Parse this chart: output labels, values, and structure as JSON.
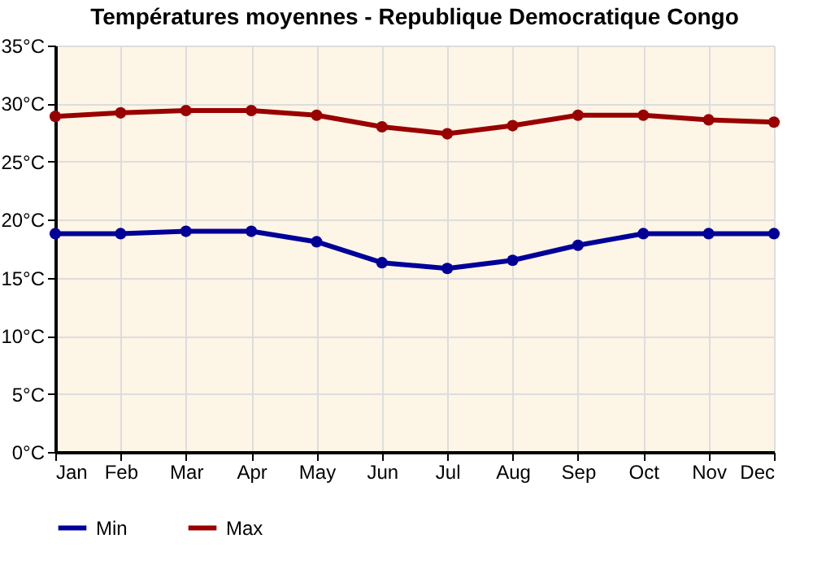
{
  "chart_data": {
    "type": "line",
    "title": "Températures moyennes - Republique Democratique Congo",
    "categories": [
      "Jan",
      "Feb",
      "Mar",
      "Apr",
      "May",
      "Jun",
      "Jul",
      "Aug",
      "Sep",
      "Oct",
      "Nov",
      "Dec"
    ],
    "series": [
      {
        "name": "Min",
        "color": "#000099",
        "values": [
          18.8,
          18.8,
          19.0,
          19.0,
          18.1,
          16.3,
          15.8,
          16.5,
          17.8,
          18.8,
          18.8,
          18.8
        ]
      },
      {
        "name": "Max",
        "color": "#990000",
        "values": [
          28.9,
          29.2,
          29.4,
          29.4,
          29.0,
          28.0,
          27.4,
          28.1,
          29.0,
          29.0,
          28.6,
          28.4
        ]
      }
    ],
    "ylim": [
      0,
      35
    ],
    "yticks": [
      {
        "value": 0,
        "label": "0°C"
      },
      {
        "value": 5,
        "label": "5°C"
      },
      {
        "value": 10,
        "label": "10°C"
      },
      {
        "value": 15,
        "label": "15°C"
      },
      {
        "value": 20,
        "label": "20°C"
      },
      {
        "value": 25,
        "label": "25°C"
      },
      {
        "value": 30,
        "label": "30°C"
      },
      {
        "value": 35,
        "label": "35°C"
      }
    ],
    "grid": true,
    "legend": "bottom left",
    "marker": "circle",
    "line_style": "solid"
  }
}
